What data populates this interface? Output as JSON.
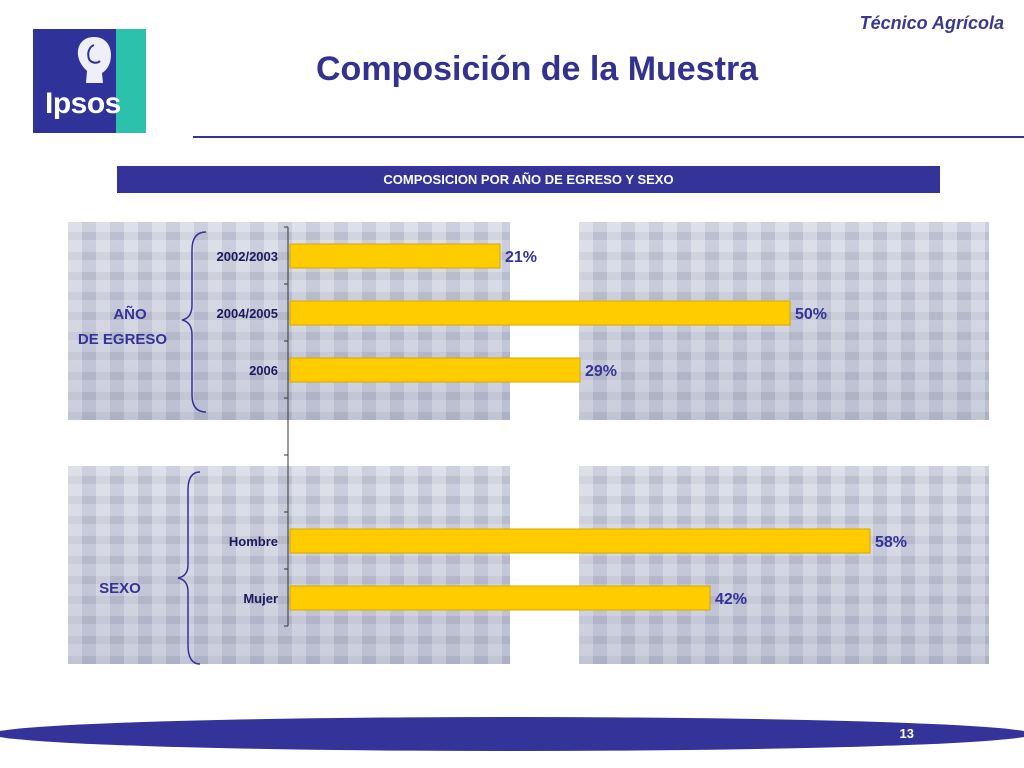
{
  "header": {
    "subtitle": "Técnico Agrícola",
    "title": "Composición de la Muestra",
    "logo_text": "Ipsos"
  },
  "banner": {
    "label": "COMPOSICION POR  AÑO DE EGRESO Y SEXO"
  },
  "groups": {
    "year_label_line1": "AÑO",
    "year_label_line2": "DE EGRESO",
    "sex_label": "SEXO"
  },
  "colors": {
    "bar": "#ffcc00",
    "bar_border": "#d4a800",
    "accent": "#333399",
    "logo_tab": "#2cc1ab"
  },
  "chart_data": {
    "type": "bar",
    "orientation": "horizontal",
    "categories": [
      "2002/2003",
      "2004/2005",
      "2006",
      "Hombre",
      "Mujer"
    ],
    "values": [
      21,
      50,
      29,
      58,
      42
    ],
    "data_labels": [
      "21%",
      "50%",
      "29%",
      "58%",
      "42%"
    ],
    "unit": "%",
    "grid": false,
    "legend": "none"
  },
  "footer": {
    "page_number": "13"
  }
}
